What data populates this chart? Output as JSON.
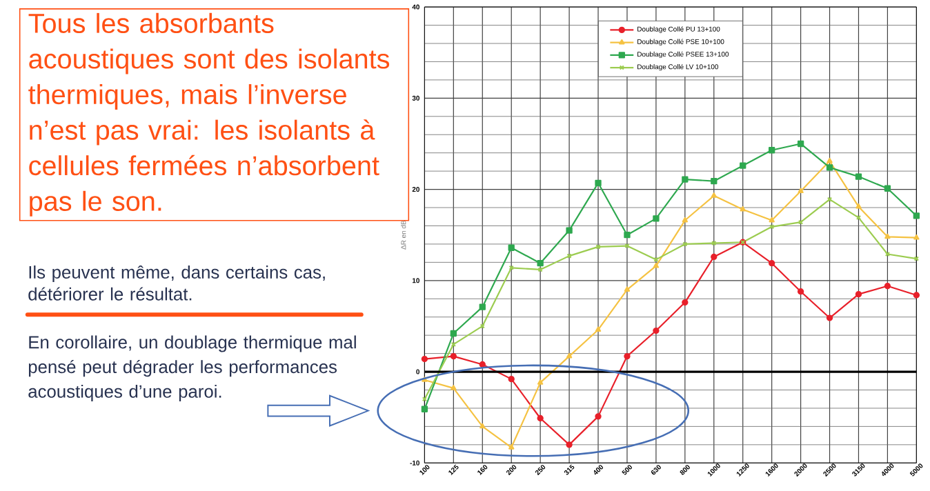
{
  "chart_data": {
    "type": "line",
    "ylabel": "ΔR en dB",
    "ylim": [
      -10,
      40
    ],
    "yticks": [
      -10,
      0,
      10,
      20,
      30,
      40
    ],
    "grid": true,
    "legend": "top",
    "line_style": "solid",
    "categories": [
      "100",
      "125",
      "160",
      "200",
      "250",
      "315",
      "400",
      "500",
      "630",
      "800",
      "1000",
      "1250",
      "1600",
      "2000",
      "2500",
      "3150",
      "4000",
      "5000"
    ],
    "annotations": [
      "Tous les absorbants acoustiques sont des isolants thermiques, mais l’inverse n’est pas vrai: les isolants à cellules fermées n’absorbent pas le son.",
      "Ils peuvent même, dans certains cas, détériorer le résultat.",
      "En corollaire, un doublage thermique mal pensé peut dégrader les performances acoustiques d’une paroi."
    ],
    "series": [
      {
        "name": "Doublage Collé PU 13+100",
        "color": "#e8202a",
        "marker": "circle",
        "values": [
          1.4,
          1.7,
          0.8,
          -0.8,
          -5.1,
          -8.0,
          -4.9,
          1.7,
          4.5,
          7.6,
          12.6,
          14.2,
          11.9,
          8.8,
          5.9,
          8.5,
          9.4,
          8.4
        ]
      },
      {
        "name": "Doublage Collé PSE 10+100",
        "color": "#f5c242",
        "marker": "triangle",
        "values": [
          -0.9,
          -1.8,
          -6.0,
          -8.3,
          -1.2,
          1.7,
          4.6,
          9.0,
          11.6,
          16.6,
          19.3,
          17.8,
          16.6,
          19.8,
          23.1,
          18.1,
          14.8,
          14.7
        ]
      },
      {
        "name": "Doublage Collé PSEE 13+100",
        "color": "#2ea84f",
        "marker": "square",
        "values": [
          -4.1,
          4.2,
          7.1,
          13.6,
          11.9,
          15.5,
          20.7,
          15.0,
          16.8,
          21.1,
          20.9,
          22.6,
          24.3,
          25.0,
          22.4,
          21.4,
          20.1,
          17.1
        ]
      },
      {
        "name": "Doublage Collé LV 10+100",
        "color": "#9ccc50",
        "marker": "cross",
        "values": [
          -3.0,
          3.0,
          5.0,
          11.4,
          11.2,
          12.7,
          13.7,
          13.8,
          12.3,
          14.0,
          14.1,
          14.2,
          15.9,
          16.4,
          18.9,
          16.9,
          12.9,
          12.4
        ]
      }
    ]
  }
}
